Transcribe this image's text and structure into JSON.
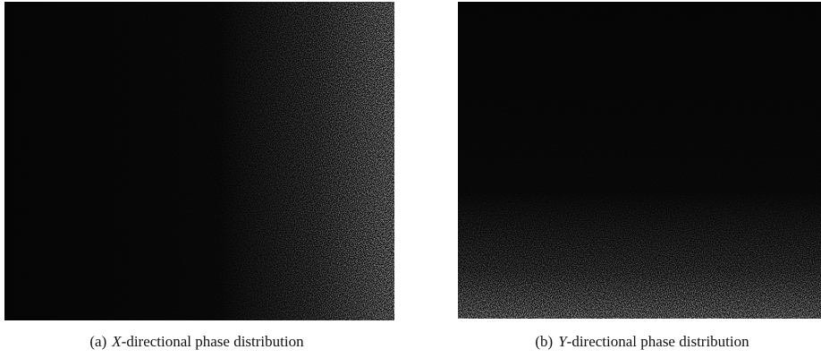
{
  "figures": [
    {
      "label": "(a)",
      "variable": "X",
      "caption": "-directional phase distribution"
    },
    {
      "label": "(b)",
      "variable": "Y",
      "caption": "-directional phase distribution"
    }
  ]
}
